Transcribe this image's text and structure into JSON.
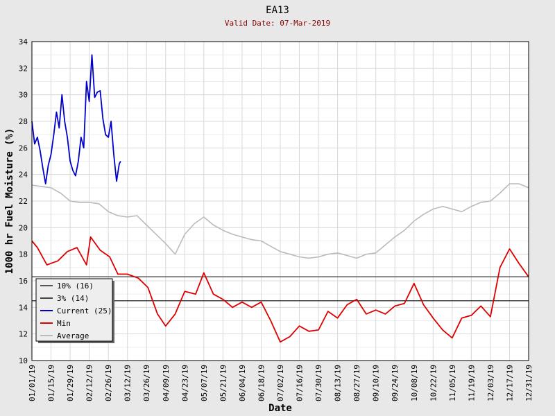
{
  "chart_data": {
    "type": "line",
    "title": "EA13",
    "subtitle": "Valid Date: 07-Mar-2019",
    "xlabel": "Date",
    "ylabel": "1000 hr Fuel Moisture (%)",
    "ylim": [
      10,
      34
    ],
    "yticks": [
      10,
      12,
      14,
      16,
      18,
      20,
      22,
      24,
      26,
      28,
      30,
      32,
      34
    ],
    "xlim": [
      "01/01/19",
      "12/31/19"
    ],
    "xticks": [
      "01/01/19",
      "01/15/19",
      "01/29/19",
      "02/12/19",
      "02/26/19",
      "03/12/19",
      "03/26/19",
      "04/09/19",
      "04/23/19",
      "05/07/19",
      "05/21/19",
      "06/04/19",
      "06/18/19",
      "07/02/19",
      "07/16/19",
      "07/30/19",
      "08/13/19",
      "08/27/19",
      "09/10/19",
      "09/24/19",
      "10/08/19",
      "10/22/19",
      "11/05/19",
      "11/19/19",
      "12/03/19",
      "12/17/19",
      "12/31/19"
    ],
    "grid": true,
    "legend_position": "bottom-left",
    "legend": [
      {
        "label": "10% (16)",
        "color": "#555555"
      },
      {
        "label": "3% (14)",
        "color": "#444444"
      },
      {
        "label": "Current (25)",
        "color": "#0000cc"
      },
      {
        "label": "Min",
        "color": "#dd0000"
      },
      {
        "label": "Average",
        "color": "#bbbbbb"
      }
    ],
    "thresholds": [
      {
        "name": "10% (16)",
        "value": 16.3,
        "color": "#555555"
      },
      {
        "name": "3% (14)",
        "value": 14.5,
        "color": "#444444"
      }
    ],
    "series": [
      {
        "name": "Current (25)",
        "color": "#0000cc",
        "x": [
          "01/01/19",
          "01/03/19",
          "01/05/19",
          "01/07/19",
          "01/09/19",
          "01/11/19",
          "01/13/19",
          "01/15/19",
          "01/17/19",
          "01/19/19",
          "01/21/19",
          "01/23/19",
          "01/25/19",
          "01/27/19",
          "01/29/19",
          "01/31/19",
          "02/02/19",
          "02/04/19",
          "02/06/19",
          "02/08/19",
          "02/10/19",
          "02/12/19",
          "02/14/19",
          "02/16/19",
          "02/18/19",
          "02/20/19",
          "02/22/19",
          "02/24/19",
          "02/26/19",
          "02/28/19",
          "03/02/19",
          "03/04/19",
          "03/06/19",
          "03/07/19"
        ],
        "values": [
          28.0,
          26.3,
          26.8,
          25.8,
          24.5,
          23.3,
          24.7,
          25.5,
          27.0,
          28.7,
          27.5,
          30.0,
          28.0,
          26.8,
          25.0,
          24.3,
          23.9,
          25.0,
          26.8,
          26.0,
          31.0,
          29.5,
          33.0,
          29.8,
          30.2,
          30.3,
          28.2,
          27.0,
          26.8,
          28.0,
          25.5,
          23.5,
          24.8,
          25.0
        ]
      },
      {
        "name": "Min",
        "color": "#dd0000",
        "x": [
          "01/01/19",
          "01/05/19",
          "01/12/19",
          "01/20/19",
          "01/27/19",
          "02/03/19",
          "02/10/19",
          "02/13/19",
          "02/20/19",
          "02/27/19",
          "03/05/19",
          "03/12/19",
          "03/20/19",
          "03/27/19",
          "04/03/19",
          "04/09/19",
          "04/16/19",
          "04/23/19",
          "05/01/19",
          "05/07/19",
          "05/14/19",
          "05/21/19",
          "05/28/19",
          "06/04/19",
          "06/11/19",
          "06/18/19",
          "06/25/19",
          "07/02/19",
          "07/09/19",
          "07/16/19",
          "07/23/19",
          "07/30/19",
          "08/06/19",
          "08/13/19",
          "08/20/19",
          "08/27/19",
          "09/03/19",
          "09/10/19",
          "09/17/19",
          "09/24/19",
          "10/01/19",
          "10/08/19",
          "10/15/19",
          "10/22/19",
          "10/29/19",
          "11/05/19",
          "11/12/19",
          "11/19/19",
          "11/26/19",
          "12/03/19",
          "12/10/19",
          "12/17/19",
          "12/24/19",
          "12/31/19"
        ],
        "values": [
          19.0,
          18.5,
          17.2,
          17.5,
          18.2,
          18.5,
          17.2,
          19.3,
          18.3,
          17.8,
          16.5,
          16.5,
          16.2,
          15.5,
          13.5,
          12.6,
          13.5,
          15.2,
          15.0,
          16.6,
          15.0,
          14.6,
          14.0,
          14.4,
          14.0,
          14.4,
          13.0,
          11.4,
          11.8,
          12.6,
          12.2,
          12.3,
          13.7,
          13.2,
          14.2,
          14.6,
          13.5,
          13.8,
          13.5,
          14.1,
          14.3,
          15.8,
          14.2,
          13.2,
          12.3,
          11.7,
          13.2,
          13.4,
          14.1,
          13.3,
          17.0,
          18.4,
          17.3,
          16.3
        ]
      },
      {
        "name": "Average",
        "color": "#bbbbbb",
        "x": [
          "01/01/19",
          "01/08/19",
          "01/15/19",
          "01/22/19",
          "01/29/19",
          "02/05/19",
          "02/12/19",
          "02/19/19",
          "02/26/19",
          "03/05/19",
          "03/12/19",
          "03/19/19",
          "03/26/19",
          "04/02/19",
          "04/09/19",
          "04/16/19",
          "04/23/19",
          "04/30/19",
          "05/07/19",
          "05/14/19",
          "05/21/19",
          "05/28/19",
          "06/04/19",
          "06/11/19",
          "06/18/19",
          "06/25/19",
          "07/02/19",
          "07/09/19",
          "07/16/19",
          "07/23/19",
          "07/30/19",
          "08/06/19",
          "08/13/19",
          "08/20/19",
          "08/27/19",
          "09/03/19",
          "09/10/19",
          "09/17/19",
          "09/24/19",
          "10/01/19",
          "10/08/19",
          "10/15/19",
          "10/22/19",
          "10/29/19",
          "11/05/19",
          "11/12/19",
          "11/19/19",
          "11/26/19",
          "12/03/19",
          "12/10/19",
          "12/17/19",
          "12/24/19",
          "12/31/19"
        ],
        "values": [
          23.2,
          23.1,
          23.0,
          22.6,
          22.0,
          21.9,
          21.9,
          21.8,
          21.2,
          20.9,
          20.8,
          20.9,
          20.2,
          19.5,
          18.8,
          18.0,
          19.5,
          20.3,
          20.8,
          20.2,
          19.8,
          19.5,
          19.3,
          19.1,
          19.0,
          18.6,
          18.2,
          18.0,
          17.8,
          17.7,
          17.8,
          18.0,
          18.1,
          17.9,
          17.7,
          18.0,
          18.1,
          18.7,
          19.3,
          19.8,
          20.5,
          21.0,
          21.4,
          21.6,
          21.4,
          21.2,
          21.6,
          21.9,
          22.0,
          22.6,
          23.3,
          23.3,
          23.0
        ]
      }
    ]
  }
}
